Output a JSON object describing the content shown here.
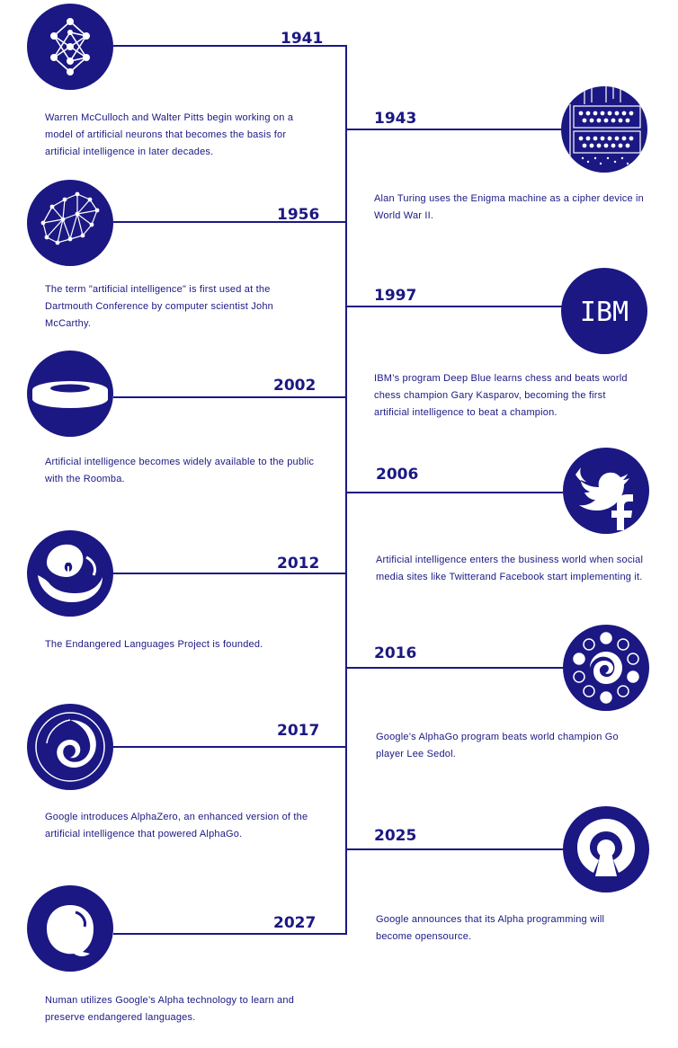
{
  "accent_color": "#1b1883",
  "events": [
    {
      "year": "1941",
      "icon": "neural-network-icon",
      "text": "Warren McCulloch and Walter Pitts begin working on a model of artificial neurons that becomes the basis for artificial intelligence in later decades."
    },
    {
      "year": "1943",
      "icon": "enigma-machine-icon",
      "text": "Alan Turing uses the Enigma machine as a cipher device in World War II."
    },
    {
      "year": "1956",
      "icon": "network-mesh-icon",
      "text": "The term \"artificial intelligence\" is first used at the Dartmouth Conference by computer scientist John McCarthy."
    },
    {
      "year": "1997",
      "icon": "ibm-logo-icon",
      "icon_text": "IBM",
      "text": "IBM’s program Deep Blue learns chess and beats world chess champion Gary Kasparov, becoming the first artificial intelligence to beat a champion."
    },
    {
      "year": "2002",
      "icon": "roomba-icon",
      "text": "Artificial intelligence becomes widely available to the public with the Roomba."
    },
    {
      "year": "2006",
      "icon": "twitter-facebook-icon",
      "text": "Artificial intelligence enters the business world when social media sites like Twitterand Facebook start implementing it."
    },
    {
      "year": "2012",
      "icon": "endangered-languages-icon",
      "text": "The Endangered Languages Project is founded."
    },
    {
      "year": "2016",
      "icon": "go-board-icon",
      "text": "Google’s AlphaGo program beats world champion Go player Lee Sedol."
    },
    {
      "year": "2017",
      "icon": "alphazero-swirl-icon",
      "text": "Google introduces AlphaZero, an enhanced version of the artificial intelligence that powered AlphaGo."
    },
    {
      "year": "2025",
      "icon": "open-source-icon",
      "text": "Google announces that its Alpha programming will become opensource."
    },
    {
      "year": "2027",
      "icon": "speech-bubble-icon",
      "text": "Numan utilizes Google’s Alpha technology to learn and preserve endangered languages."
    }
  ]
}
